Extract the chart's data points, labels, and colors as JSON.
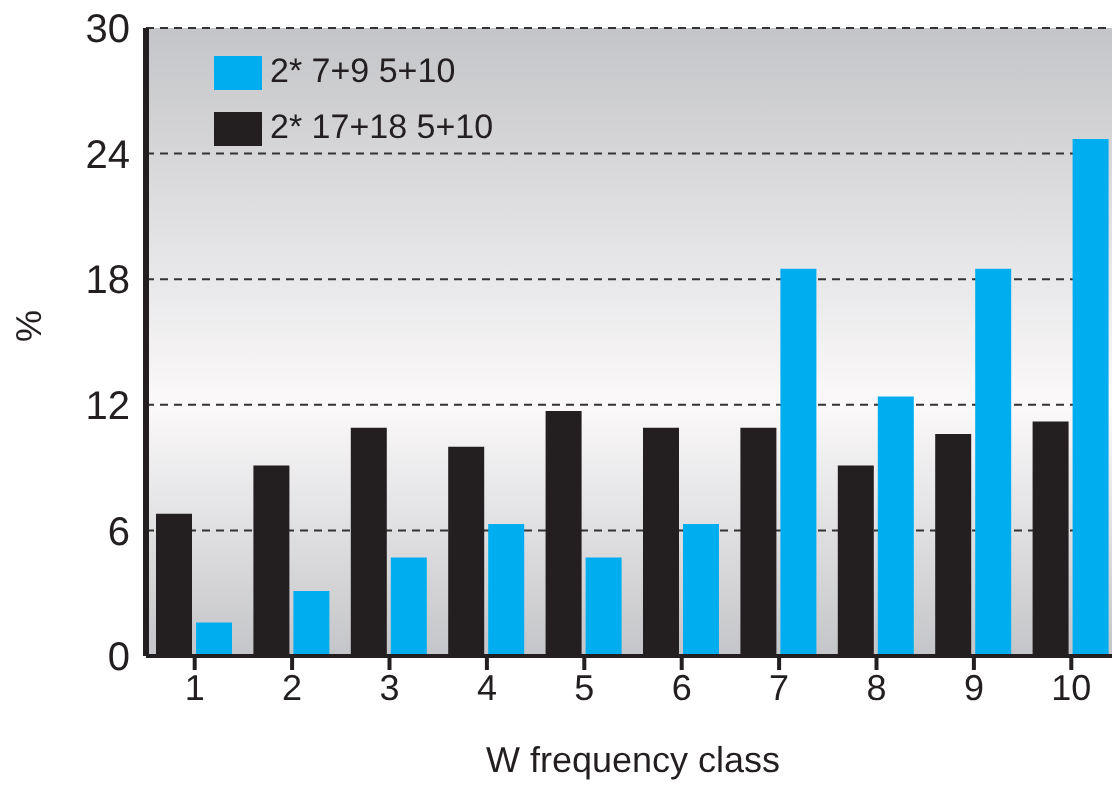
{
  "chart_data": {
    "type": "bar",
    "xlabel": "W frequency class",
    "ylabel": "%",
    "categories": [
      "1",
      "2",
      "3",
      "4",
      "5",
      "6",
      "7",
      "8",
      "9",
      "10"
    ],
    "series": [
      {
        "name": "2* 7+9 5+10",
        "color": "#00aeef",
        "values": [
          1.6,
          3.1,
          4.7,
          6.3,
          4.7,
          6.3,
          18.5,
          12.4,
          18.5,
          24.7
        ]
      },
      {
        "name": "2* 17+18 5+10",
        "color": "#231f20",
        "values": [
          6.8,
          9.1,
          10.9,
          10.0,
          11.7,
          10.9,
          10.9,
          9.1,
          10.6,
          11.2
        ]
      }
    ],
    "ylim": [
      0,
      30
    ],
    "yticks": [
      0,
      6,
      12,
      18,
      24,
      30
    ],
    "grid": "y",
    "legend": "top left"
  }
}
